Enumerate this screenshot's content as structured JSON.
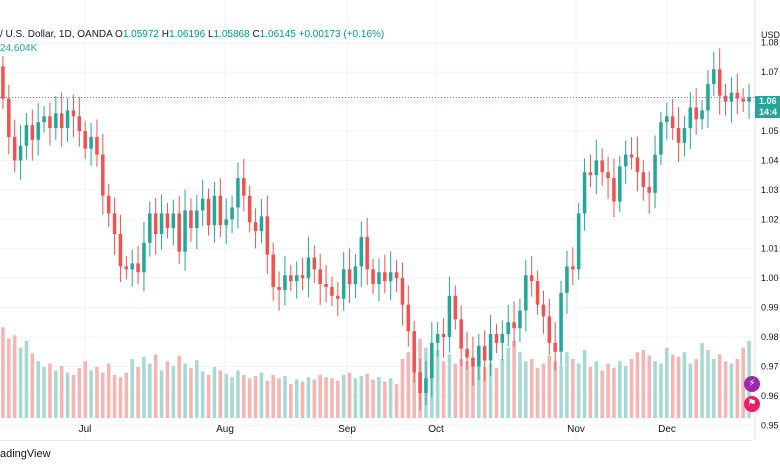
{
  "legend": {
    "symbol": "/ U.S. Dollar, 1D, OANDA",
    "open_label": "O",
    "open": "1.05972",
    "high_label": "H",
    "high": "1.06196",
    "low_label": "L",
    "low": "1.05868",
    "close_label": "C",
    "close": "1.06145",
    "change": "+0.00173 (+0.16%)",
    "volume": "24.604K"
  },
  "price_axis": {
    "currency": "USD",
    "current_price_tag": "1.06",
    "countdown_tag": "14:4"
  },
  "watermark": "adingView",
  "colors": {
    "up": "#26a69a",
    "down": "#ef5350",
    "up_volume": "#a7d9d3",
    "down_volume": "#f5b5b2",
    "current_price_line": "#26a69a",
    "grid": "#f0f3fa"
  },
  "chart_data": {
    "type": "candlestick",
    "title": "",
    "x_ticks": [
      "Jul",
      "Aug",
      "Sep",
      "Oct",
      "Nov",
      "Dec"
    ],
    "y_ticks": [
      "1.08",
      "1.07",
      "1.06",
      "1.05",
      "1.04",
      "1.03",
      "1.02",
      "1.01",
      "1.00",
      "0.99",
      "0.98",
      "0.97",
      "0.96",
      "0.95"
    ],
    "ylim": [
      0.945,
      1.085
    ],
    "current_price": 1.0614,
    "grid": true,
    "candles": [
      {
        "o": 1.072,
        "c": 1.061
      },
      {
        "o": 1.061,
        "c": 1.048
      },
      {
        "o": 1.048,
        "c": 1.04
      },
      {
        "o": 1.04,
        "c": 1.045
      },
      {
        "o": 1.045,
        "c": 1.052
      },
      {
        "o": 1.052,
        "c": 1.047
      },
      {
        "o": 1.047,
        "c": 1.053
      },
      {
        "o": 1.053,
        "c": 1.055
      },
      {
        "o": 1.055,
        "c": 1.051
      },
      {
        "o": 1.051,
        "c": 1.056
      },
      {
        "o": 1.056,
        "c": 1.051
      },
      {
        "o": 1.051,
        "c": 1.057
      },
      {
        "o": 1.057,
        "c": 1.055
      },
      {
        "o": 1.055,
        "c": 1.05
      },
      {
        "o": 1.05,
        "c": 1.044
      },
      {
        "o": 1.044,
        "c": 1.048
      },
      {
        "o": 1.048,
        "c": 1.042
      },
      {
        "o": 1.042,
        "c": 1.028
      },
      {
        "o": 1.028,
        "c": 1.022
      },
      {
        "o": 1.022,
        "c": 1.015
      },
      {
        "o": 1.015,
        "c": 1.004
      },
      {
        "o": 1.004,
        "c": 1.003
      },
      {
        "o": 1.003,
        "c": 1.005
      },
      {
        "o": 1.005,
        "c": 1.002
      },
      {
        "o": 1.002,
        "c": 1.012
      },
      {
        "o": 1.012,
        "c": 1.022
      },
      {
        "o": 1.022,
        "c": 1.015
      },
      {
        "o": 1.015,
        "c": 1.022
      },
      {
        "o": 1.022,
        "c": 1.017
      },
      {
        "o": 1.017,
        "c": 1.022
      },
      {
        "o": 1.022,
        "c": 1.009
      },
      {
        "o": 1.009,
        "c": 1.023
      },
      {
        "o": 1.023,
        "c": 1.017
      },
      {
        "o": 1.017,
        "c": 1.023
      },
      {
        "o": 1.023,
        "c": 1.027
      },
      {
        "o": 1.027,
        "c": 1.018
      },
      {
        "o": 1.018,
        "c": 1.028
      },
      {
        "o": 1.028,
        "c": 1.018
      },
      {
        "o": 1.018,
        "c": 1.02
      },
      {
        "o": 1.02,
        "c": 1.024
      },
      {
        "o": 1.024,
        "c": 1.034
      },
      {
        "o": 1.034,
        "c": 1.028
      },
      {
        "o": 1.028,
        "c": 1.019
      },
      {
        "o": 1.019,
        "c": 1.016
      },
      {
        "o": 1.016,
        "c": 1.021
      },
      {
        "o": 1.021,
        "c": 1.008
      },
      {
        "o": 1.008,
        "c": 0.997
      },
      {
        "o": 0.997,
        "c": 0.996
      },
      {
        "o": 0.996,
        "c": 1.001
      },
      {
        "o": 1.001,
        "c": 0.999
      },
      {
        "o": 0.999,
        "c": 1.001
      },
      {
        "o": 1.001,
        "c": 1.0
      },
      {
        "o": 1.0,
        "c": 1.007
      },
      {
        "o": 1.007,
        "c": 1.003
      },
      {
        "o": 1.003,
        "c": 0.998
      },
      {
        "o": 0.998,
        "c": 0.997
      },
      {
        "o": 0.997,
        "c": 0.994
      },
      {
        "o": 0.994,
        "c": 0.993
      },
      {
        "o": 0.993,
        "c": 1.003
      },
      {
        "o": 1.003,
        "c": 0.998
      },
      {
        "o": 0.998,
        "c": 1.004
      },
      {
        "o": 1.004,
        "c": 1.014
      },
      {
        "o": 1.014,
        "c": 1.003
      },
      {
        "o": 1.003,
        "c": 0.998
      },
      {
        "o": 0.998,
        "c": 1.002
      },
      {
        "o": 1.002,
        "c": 0.999
      },
      {
        "o": 0.999,
        "c": 1.002
      },
      {
        "o": 1.002,
        "c": 1.0
      },
      {
        "o": 1.0,
        "c": 0.991
      },
      {
        "o": 0.991,
        "c": 0.982
      },
      {
        "o": 0.982,
        "c": 0.968
      },
      {
        "o": 0.968,
        "c": 0.961
      },
      {
        "o": 0.961,
        "c": 0.966
      },
      {
        "o": 0.966,
        "c": 0.978
      },
      {
        "o": 0.978,
        "c": 0.981
      },
      {
        "o": 0.981,
        "c": 0.98
      },
      {
        "o": 0.98,
        "c": 0.994
      },
      {
        "o": 0.994,
        "c": 0.986
      },
      {
        "o": 0.986,
        "c": 0.976
      },
      {
        "o": 0.976,
        "c": 0.973
      },
      {
        "o": 0.973,
        "c": 0.97
      },
      {
        "o": 0.97,
        "c": 0.977
      },
      {
        "o": 0.977,
        "c": 0.972
      },
      {
        "o": 0.972,
        "c": 0.981
      },
      {
        "o": 0.981,
        "c": 0.978
      },
      {
        "o": 0.978,
        "c": 0.981
      },
      {
        "o": 0.981,
        "c": 0.985
      },
      {
        "o": 0.985,
        "c": 0.983
      },
      {
        "o": 0.983,
        "c": 0.989
      },
      {
        "o": 0.989,
        "c": 1.001
      },
      {
        "o": 1.001,
        "c": 0.999
      },
      {
        "o": 0.999,
        "c": 0.991
      },
      {
        "o": 0.991,
        "c": 0.987
      },
      {
        "o": 0.987,
        "c": 0.978
      },
      {
        "o": 0.978,
        "c": 0.975
      },
      {
        "o": 0.975,
        "c": 0.995
      },
      {
        "o": 0.995,
        "c": 1.004
      },
      {
        "o": 1.004,
        "c": 1.003
      },
      {
        "o": 1.003,
        "c": 1.022
      },
      {
        "o": 1.022,
        "c": 1.036
      },
      {
        "o": 1.036,
        "c": 1.035
      },
      {
        "o": 1.035,
        "c": 1.04
      },
      {
        "o": 1.04,
        "c": 1.036
      },
      {
        "o": 1.036,
        "c": 1.034
      },
      {
        "o": 1.034,
        "c": 1.026
      },
      {
        "o": 1.026,
        "c": 1.038
      },
      {
        "o": 1.038,
        "c": 1.042
      },
      {
        "o": 1.042,
        "c": 1.041
      },
      {
        "o": 1.041,
        "c": 1.036
      },
      {
        "o": 1.036,
        "c": 1.031
      },
      {
        "o": 1.031,
        "c": 1.029
      },
      {
        "o": 1.029,
        "c": 1.042
      },
      {
        "o": 1.042,
        "c": 1.053
      },
      {
        "o": 1.053,
        "c": 1.055
      },
      {
        "o": 1.055,
        "c": 1.051
      },
      {
        "o": 1.051,
        "c": 1.046
      },
      {
        "o": 1.046,
        "c": 1.051
      },
      {
        "o": 1.051,
        "c": 1.058
      },
      {
        "o": 1.058,
        "c": 1.054
      },
      {
        "o": 1.054,
        "c": 1.057
      },
      {
        "o": 1.057,
        "c": 1.066
      },
      {
        "o": 1.066,
        "c": 1.071
      },
      {
        "o": 1.071,
        "c": 1.062
      },
      {
        "o": 1.062,
        "c": 1.06
      },
      {
        "o": 1.06,
        "c": 1.063
      },
      {
        "o": 1.063,
        "c": 1.061
      },
      {
        "o": 1.061,
        "c": 1.06
      },
      {
        "o": 1.06,
        "c": 1.0614
      }
    ],
    "volume": [
      0.8,
      0.7,
      0.73,
      0.62,
      0.68,
      0.57,
      0.5,
      0.45,
      0.48,
      0.42,
      0.46,
      0.4,
      0.38,
      0.44,
      0.5,
      0.42,
      0.45,
      0.4,
      0.48,
      0.38,
      0.36,
      0.4,
      0.52,
      0.45,
      0.54,
      0.48,
      0.56,
      0.42,
      0.5,
      0.46,
      0.55,
      0.48,
      0.44,
      0.51,
      0.41,
      0.38,
      0.45,
      0.42,
      0.39,
      0.36,
      0.42,
      0.38,
      0.35,
      0.37,
      0.4,
      0.33,
      0.38,
      0.35,
      0.37,
      0.3,
      0.34,
      0.32,
      0.36,
      0.34,
      0.38,
      0.36,
      0.35,
      0.33,
      0.38,
      0.4,
      0.35,
      0.37,
      0.39,
      0.34,
      0.36,
      0.32,
      0.35,
      0.3,
      0.52,
      0.58,
      0.67,
      0.7,
      0.62,
      0.55,
      0.6,
      0.5,
      0.56,
      0.48,
      0.52,
      0.5,
      0.46,
      0.54,
      0.45,
      0.48,
      0.44,
      0.52,
      0.62,
      0.68,
      0.58,
      0.5,
      0.52,
      0.44,
      0.48,
      0.55,
      0.5,
      0.46,
      0.58,
      0.52,
      0.48,
      0.6,
      0.45,
      0.5,
      0.42,
      0.48,
      0.44,
      0.5,
      0.46,
      0.52,
      0.58,
      0.6,
      0.55,
      0.5,
      0.48,
      0.62,
      0.56,
      0.54,
      0.58,
      0.48,
      0.52,
      0.66,
      0.6,
      0.52,
      0.56,
      0.5,
      0.48,
      0.52,
      0.62,
      0.68
    ]
  }
}
